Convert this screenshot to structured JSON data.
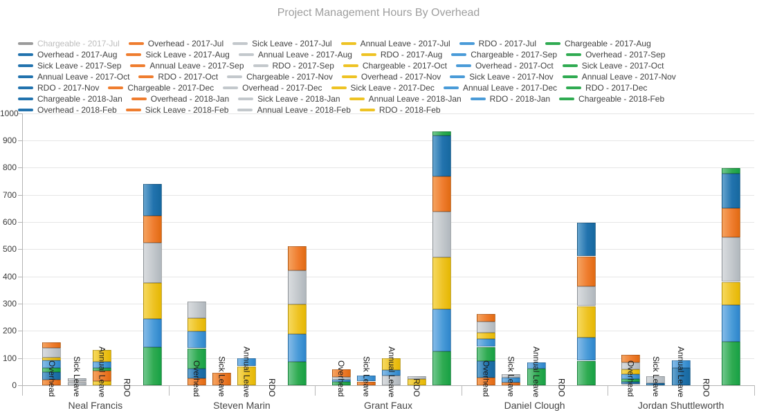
{
  "chart_data": {
    "type": "bar",
    "stacked": true,
    "title": "Project Management Hours By Overhead",
    "y_axis": {
      "min": 0,
      "max": 1000,
      "step": 100,
      "tick_labels": [
        "0",
        "100",
        "200",
        "300",
        "400",
        "500",
        "600",
        "700",
        "800",
        "900",
        "1000"
      ]
    },
    "categories": [
      "Neal Francis",
      "Steven Marin",
      "Grant Faux",
      "Daniel Clough",
      "Jordan Shuttleworth"
    ],
    "bar_groups": [
      "Overhead",
      "Sick Leave",
      "Annual Leave",
      "RDO",
      "Chargeable"
    ],
    "months": [
      "2017-Jul",
      "2017-Aug",
      "2017-Sep",
      "2017-Oct",
      "2017-Nov",
      "2017-Dec",
      "2018-Jan",
      "2018-Feb"
    ],
    "series_order_per_month": [
      "Chargeable",
      "Overhead",
      "Sick Leave",
      "Annual Leave",
      "RDO"
    ],
    "hidden_series": "Chargeable - 2017-Jul",
    "values": {
      "Neal Francis": {
        "Overhead": [
          20,
          28,
          15,
          29,
          9,
          36,
          20,
          0
        ],
        "Sick Leave": [
          10,
          5,
          0,
          0,
          0,
          0,
          10,
          0
        ],
        "Annual Leave": [
          15,
          0,
          38,
          0,
          10,
          24,
          43,
          0
        ],
        "RDO": [
          0,
          0,
          0,
          0,
          0,
          0,
          0,
          0
        ],
        "Chargeable": [
          0,
          140,
          105,
          130,
          148,
          100,
          117,
          0
        ]
      },
      "Steven Marin": {
        "Overhead": [
          26,
          34,
          76,
          62,
          48,
          61,
          0,
          0
        ],
        "Sick Leave": [
          0,
          47,
          0,
          0,
          0,
          0,
          0,
          0
        ],
        "Annual Leave": [
          70,
          0,
          0,
          0,
          0,
          30,
          0,
          0
        ],
        "RDO": [
          0,
          0,
          0,
          0,
          0,
          0,
          0,
          0
        ],
        "Chargeable": [
          0,
          86,
          102,
          110,
          124,
          89,
          0,
          0
        ]
      },
      "Grant Faux": {
        "Overhead": [
          0,
          0,
          12,
          8,
          0,
          10,
          28,
          0
        ],
        "Sick Leave": [
          0,
          14,
          0,
          0,
          21,
          0,
          0,
          0
        ],
        "Annual Leave": [
          0,
          35,
          0,
          0,
          0,
          21,
          42,
          0
        ],
        "RDO": [
          0,
          22,
          10,
          0,
          0,
          0,
          0,
          0
        ],
        "Chargeable": [
          0,
          124,
          156,
          191,
          167,
          130,
          149,
          15
        ]
      },
      "Daniel Clough": {
        "Overhead": [
          28,
          62,
          51,
          30,
          21,
          42,
          27,
          0
        ],
        "Sick Leave": [
          0,
          10,
          0,
          0,
          17,
          0,
          14,
          0
        ],
        "Annual Leave": [
          0,
          0,
          0,
          0,
          60,
          24,
          0,
          0
        ],
        "RDO": [
          0,
          0,
          0,
          0,
          0,
          0,
          0,
          0
        ],
        "Chargeable": [
          0,
          90,
          85,
          116,
          73,
          110,
          124,
          0
        ]
      },
      "Jordan Shuttleworth": {
        "Overhead": [
          5,
          8,
          11,
          17,
          17,
          25,
          28,
          0
        ],
        "Sick Leave": [
          0,
          0,
          8,
          0,
          0,
          0,
          25,
          0
        ],
        "Annual Leave": [
          0,
          0,
          0,
          64,
          0,
          28,
          0,
          0
        ],
        "RDO": [
          0,
          0,
          0,
          0,
          0,
          0,
          0,
          0
        ],
        "Chargeable": [
          0,
          160,
          135,
          85,
          164,
          107,
          127,
          20
        ]
      }
    },
    "palette_cycle": [
      "darkblue",
      "orange",
      "silver",
      "gold",
      "lightblue",
      "green"
    ],
    "colors": {
      "darkblue": {
        "flat": "#2273ae",
        "light": "#67a5cf",
        "dark": "#16689f"
      },
      "orange": {
        "flat": "#ef7d2f",
        "light": "#f5a360",
        "dark": "#e16a12"
      },
      "silver": {
        "flat": "#c3c8cc",
        "light": "#d9dcdf",
        "dark": "#b0b7bd"
      },
      "gold": {
        "flat": "#eec324",
        "light": "#f6d95e",
        "dark": "#e5b703"
      },
      "lightblue": {
        "flat": "#4a9bd8",
        "light": "#85bbe8",
        "dark": "#2d85cb"
      },
      "green": {
        "flat": "#30ab52",
        "light": "#70c88d",
        "dark": "#17a144"
      },
      "disabled_marker": "#9b9b9b",
      "disabled_text": "#bcbcbc",
      "grid": "#e5e5e5",
      "axis": "#b3b3b3",
      "title_text": "#9e9e9e"
    }
  },
  "legend": {
    "items": [
      {
        "label": "Chargeable - 2017-Jul",
        "color": "disabled",
        "disabled": true
      },
      {
        "label": "Overhead - 2017-Jul",
        "color": "orange"
      },
      {
        "label": "Sick Leave - 2017-Jul",
        "color": "silver"
      },
      {
        "label": "Annual Leave - 2017-Jul",
        "color": "gold"
      },
      {
        "label": "RDO - 2017-Jul",
        "color": "lightblue"
      },
      {
        "label": "Chargeable - 2017-Aug",
        "color": "green"
      },
      {
        "label": "Overhead - 2017-Aug",
        "color": "darkblue"
      },
      {
        "label": "Sick Leave - 2017-Aug",
        "color": "orange"
      },
      {
        "label": "Annual Leave - 2017-Aug",
        "color": "silver"
      },
      {
        "label": "RDO - 2017-Aug",
        "color": "gold"
      },
      {
        "label": "Chargeable - 2017-Sep",
        "color": "lightblue"
      },
      {
        "label": "Overhead - 2017-Sep",
        "color": "green"
      },
      {
        "label": "Sick Leave - 2017-Sep",
        "color": "darkblue"
      },
      {
        "label": "Annual Leave - 2017-Sep",
        "color": "orange"
      },
      {
        "label": "RDO - 2017-Sep",
        "color": "silver"
      },
      {
        "label": "Chargeable - 2017-Oct",
        "color": "gold"
      },
      {
        "label": "Overhead - 2017-Oct",
        "color": "lightblue"
      },
      {
        "label": "Sick Leave - 2017-Oct",
        "color": "green"
      },
      {
        "label": "Annual Leave - 2017-Oct",
        "color": "darkblue"
      },
      {
        "label": "RDO - 2017-Oct",
        "color": "orange"
      },
      {
        "label": "Chargeable - 2017-Nov",
        "color": "silver"
      },
      {
        "label": "Overhead - 2017-Nov",
        "color": "gold"
      },
      {
        "label": "Sick Leave - 2017-Nov",
        "color": "lightblue"
      },
      {
        "label": "Annual Leave - 2017-Nov",
        "color": "green"
      },
      {
        "label": "RDO - 2017-Nov",
        "color": "darkblue"
      },
      {
        "label": "Chargeable - 2017-Dec",
        "color": "orange"
      },
      {
        "label": "Overhead - 2017-Dec",
        "color": "silver"
      },
      {
        "label": "Sick Leave - 2017-Dec",
        "color": "gold"
      },
      {
        "label": "Annual Leave - 2017-Dec",
        "color": "lightblue"
      },
      {
        "label": "RDO - 2017-Dec",
        "color": "green"
      },
      {
        "label": "Chargeable - 2018-Jan",
        "color": "darkblue"
      },
      {
        "label": "Overhead - 2018-Jan",
        "color": "orange"
      },
      {
        "label": "Sick Leave - 2018-Jan",
        "color": "silver"
      },
      {
        "label": "Annual Leave - 2018-Jan",
        "color": "gold"
      },
      {
        "label": "RDO - 2018-Jan",
        "color": "lightblue"
      },
      {
        "label": "Chargeable - 2018-Feb",
        "color": "green"
      },
      {
        "label": "Overhead - 2018-Feb",
        "color": "darkblue"
      },
      {
        "label": "Sick Leave - 2018-Feb",
        "color": "orange"
      },
      {
        "label": "Annual Leave - 2018-Feb",
        "color": "silver"
      },
      {
        "label": "RDO - 2018-Feb",
        "color": "gold"
      }
    ]
  }
}
